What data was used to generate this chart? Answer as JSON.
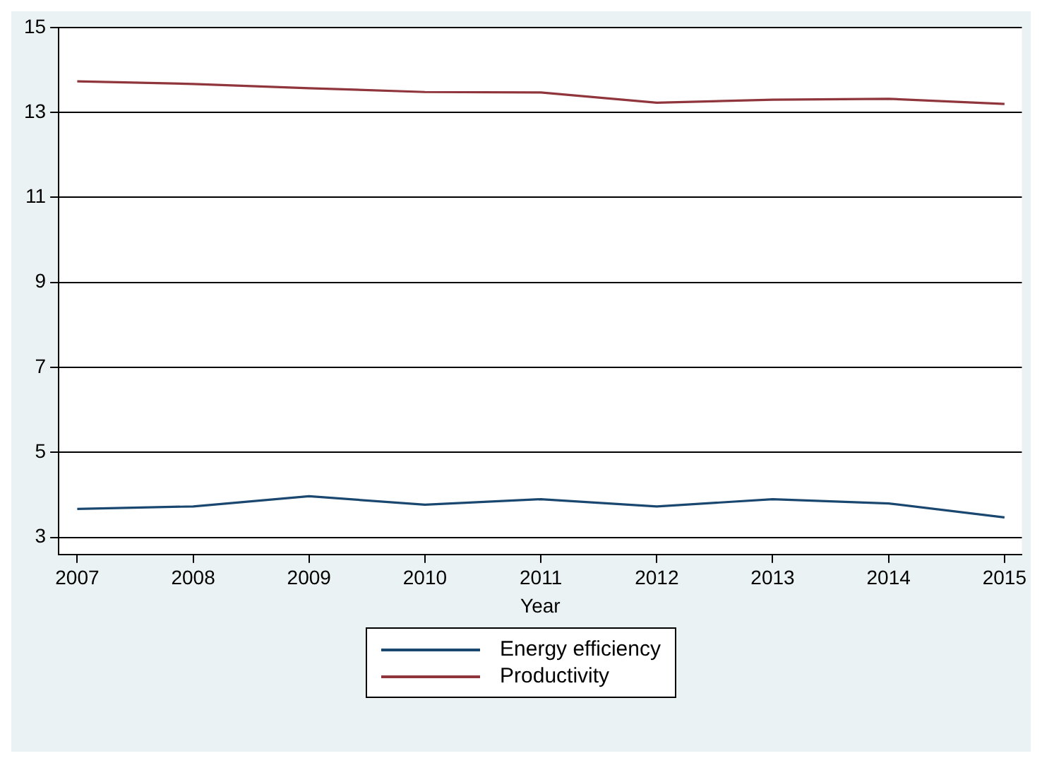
{
  "chart_data": {
    "type": "line",
    "xlabel": "Year",
    "x": [
      2007,
      2008,
      2009,
      2010,
      2011,
      2012,
      2013,
      2014,
      2015
    ],
    "series": [
      {
        "name": "Energy efficiency",
        "color": "#1a476f",
        "values": [
          3.67,
          3.73,
          3.97,
          3.77,
          3.9,
          3.73,
          3.9,
          3.8,
          3.47
        ]
      },
      {
        "name": "Productivity",
        "color": "#90353b",
        "values": [
          13.73,
          13.67,
          13.57,
          13.48,
          13.47,
          13.23,
          13.3,
          13.32,
          13.2
        ]
      }
    ],
    "xlim": [
      2006.84,
      2015.15
    ],
    "xticks": [
      2007,
      2008,
      2009,
      2010,
      2011,
      2012,
      2013,
      2014,
      2015
    ],
    "ylim": [
      2.6,
      15
    ],
    "yticks": [
      3,
      5,
      7,
      9,
      11,
      13,
      15
    ],
    "grid": "y",
    "legend": "bottom",
    "marker": "none",
    "line_style": "solid"
  }
}
